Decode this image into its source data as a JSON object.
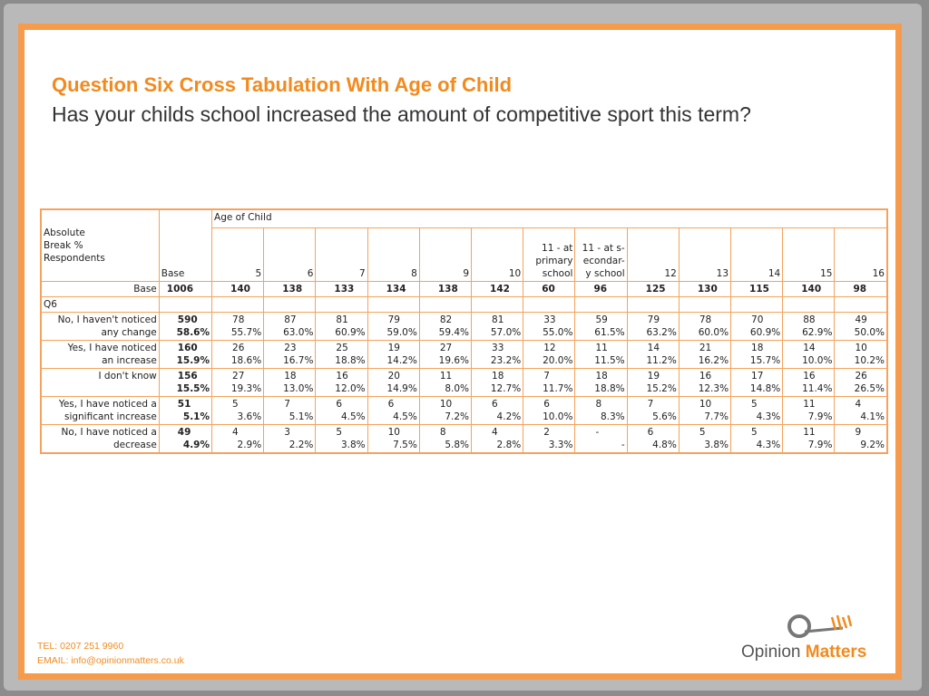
{
  "slide": {
    "title": "Question Six Cross Tabulation With Age of Child",
    "subtitle": "Has your childs school increased the amount of competitive sport this term?"
  },
  "table": {
    "header_left": [
      "Absolute",
      "Break %",
      "Respondents"
    ],
    "base_header": "Base",
    "group_header": "Age of Child",
    "columns": [
      "5",
      "6",
      "7",
      "8",
      "9",
      "10",
      "11 - at primary school",
      "11 - at s-econdar-y school",
      "12",
      "13",
      "14",
      "15",
      "16"
    ],
    "columns_lines": [
      [
        "5"
      ],
      [
        "6"
      ],
      [
        "7"
      ],
      [
        "8"
      ],
      [
        "9"
      ],
      [
        "10"
      ],
      [
        "11 - at",
        "primary",
        "school"
      ],
      [
        "11 - at s-",
        "econdar-",
        "y school"
      ],
      [
        "12"
      ],
      [
        "13"
      ],
      [
        "14"
      ],
      [
        "15"
      ],
      [
        "16"
      ]
    ],
    "base_row": {
      "label": "Base",
      "total": "1006",
      "values": [
        "140",
        "138",
        "133",
        "134",
        "138",
        "142",
        "60",
        "96",
        "125",
        "130",
        "115",
        "140",
        "98"
      ]
    },
    "question_label": "Q6",
    "rows": [
      {
        "label": [
          "No, I haven't noticed",
          "any change"
        ],
        "total_n": "590",
        "total_p": "58.6%",
        "n": [
          "78",
          "87",
          "81",
          "79",
          "82",
          "81",
          "33",
          "59",
          "79",
          "78",
          "70",
          "88",
          "49"
        ],
        "p": [
          "55.7%",
          "63.0%",
          "60.9%",
          "59.0%",
          "59.4%",
          "57.0%",
          "55.0%",
          "61.5%",
          "63.2%",
          "60.0%",
          "60.9%",
          "62.9%",
          "50.0%"
        ]
      },
      {
        "label": [
          "Yes, I have noticed",
          "an increase"
        ],
        "total_n": "160",
        "total_p": "15.9%",
        "n": [
          "26",
          "23",
          "25",
          "19",
          "27",
          "33",
          "12",
          "11",
          "14",
          "21",
          "18",
          "14",
          "10"
        ],
        "p": [
          "18.6%",
          "16.7%",
          "18.8%",
          "14.2%",
          "19.6%",
          "23.2%",
          "20.0%",
          "11.5%",
          "11.2%",
          "16.2%",
          "15.7%",
          "10.0%",
          "10.2%"
        ]
      },
      {
        "label": [
          "I don't know",
          ""
        ],
        "total_n": "156",
        "total_p": "15.5%",
        "n": [
          "27",
          "18",
          "16",
          "20",
          "11",
          "18",
          "7",
          "18",
          "19",
          "16",
          "17",
          "16",
          "26"
        ],
        "p": [
          "19.3%",
          "13.0%",
          "12.0%",
          "14.9%",
          "8.0%",
          "12.7%",
          "11.7%",
          "18.8%",
          "15.2%",
          "12.3%",
          "14.8%",
          "11.4%",
          "26.5%"
        ]
      },
      {
        "label": [
          "Yes, I have noticed a",
          "significant increase"
        ],
        "total_n": "51",
        "total_p": "5.1%",
        "n": [
          "5",
          "7",
          "6",
          "6",
          "10",
          "6",
          "6",
          "8",
          "7",
          "10",
          "5",
          "11",
          "4"
        ],
        "p": [
          "3.6%",
          "5.1%",
          "4.5%",
          "4.5%",
          "7.2%",
          "4.2%",
          "10.0%",
          "8.3%",
          "5.6%",
          "7.7%",
          "4.3%",
          "7.9%",
          "4.1%"
        ]
      },
      {
        "label": [
          "No, I have noticed a",
          "decrease"
        ],
        "total_n": "49",
        "total_p": "4.9%",
        "n": [
          "4",
          "3",
          "5",
          "10",
          "8",
          "4",
          "2",
          "-",
          "6",
          "5",
          "5",
          "11",
          "9"
        ],
        "p": [
          "2.9%",
          "2.2%",
          "3.8%",
          "7.5%",
          "5.8%",
          "2.8%",
          "3.3%",
          "-",
          "4.8%",
          "3.8%",
          "4.3%",
          "7.9%",
          "9.2%"
        ]
      }
    ]
  },
  "footer": {
    "tel": "TEL: 0207 251 9960",
    "email": "EMAIL: info@opinionmatters.co.uk"
  },
  "logo": {
    "word1": "Opinion ",
    "word2": "Matters",
    "colors": {
      "accent": "#f28a1e",
      "dark": "#555555"
    }
  },
  "colors": {
    "accent": "#f28a1e",
    "border": "#f59b4b",
    "table_rule": "#f6a25c"
  }
}
